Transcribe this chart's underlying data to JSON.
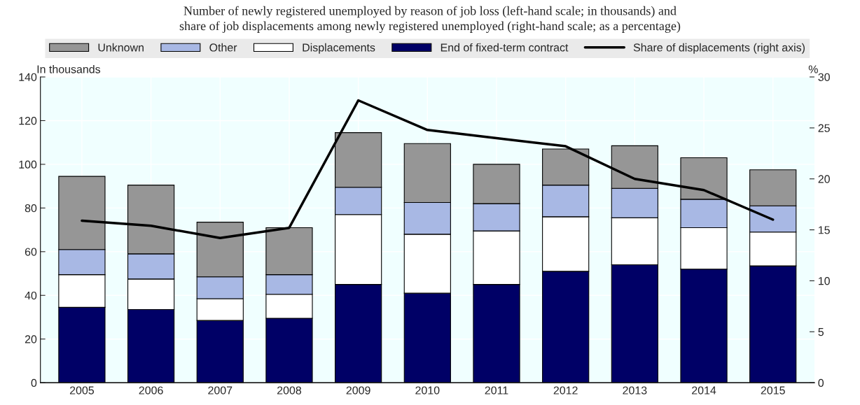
{
  "chart_data": {
    "type": "bar",
    "stacked": true,
    "title": "Number of newly registered unemployed by reason of job loss (left-hand scale; in thousands) and\nshare of job displacements among newly registered unemployed (right-hand scale; as a percentage)",
    "ylabel": "In thousands",
    "y2label": "%",
    "categories": [
      "2005",
      "2006",
      "2007",
      "2008",
      "2009",
      "2010",
      "2011",
      "2012",
      "2013",
      "2014",
      "2015"
    ],
    "series": [
      {
        "name": "End of fixed-term contract",
        "color": "#000066",
        "values": [
          34.5,
          33.5,
          28.5,
          29.5,
          45,
          41,
          45,
          51,
          54,
          52,
          53.5
        ]
      },
      {
        "name": "Displacements",
        "color": "#ffffff",
        "values": [
          15,
          14,
          10,
          11,
          32,
          27,
          24.5,
          25,
          21.5,
          19,
          15.5
        ]
      },
      {
        "name": "Other",
        "color": "#a8b8e4",
        "values": [
          11.5,
          11.5,
          10,
          9,
          12.5,
          14.5,
          12.5,
          14.5,
          13.5,
          13,
          12
        ]
      },
      {
        "name": "Unknown",
        "color": "#969696",
        "values": [
          33.5,
          31.5,
          25,
          21.5,
          25,
          27,
          18,
          16.5,
          19.5,
          19,
          16.5
        ]
      },
      {
        "name": "Share of displacements (right axis)",
        "type": "line",
        "axis": "y2",
        "color": "#000000",
        "values": [
          15.9,
          15.4,
          14.2,
          15.2,
          27.7,
          24.8,
          24.0,
          23.2,
          20.0,
          18.9,
          16.0
        ]
      }
    ],
    "ylim": [
      0,
      140
    ],
    "yticks": [
      0,
      20,
      40,
      60,
      80,
      100,
      120,
      140
    ],
    "y2lim": [
      0,
      30
    ],
    "y2ticks": [
      0,
      5,
      10,
      15,
      20,
      25,
      30
    ],
    "grid": true,
    "legend": "top"
  }
}
